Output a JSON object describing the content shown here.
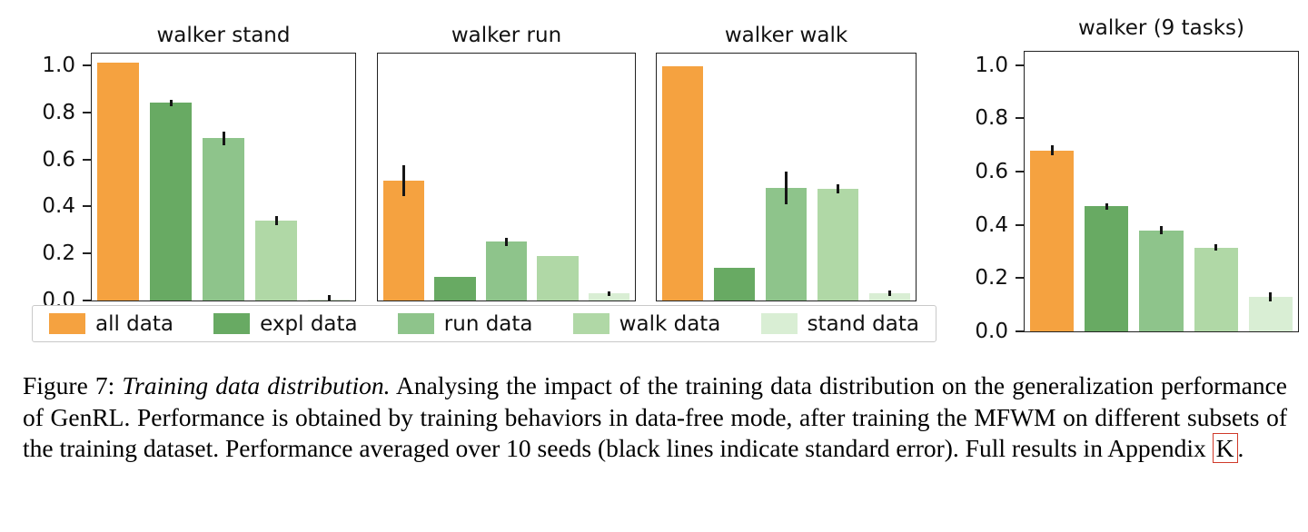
{
  "legend": {
    "items": [
      {
        "label": "all data",
        "color": "#f5a240"
      },
      {
        "label": "expl data",
        "color": "#68aa63"
      },
      {
        "label": "run data",
        "color": "#8ec48b"
      },
      {
        "label": "walk data",
        "color": "#b0d8a6"
      },
      {
        "label": "stand data",
        "color": "#d9eed4"
      }
    ]
  },
  "chart_data": [
    {
      "type": "bar",
      "title": "walker stand",
      "categories": [
        "all data",
        "expl data",
        "run data",
        "walk data",
        "stand data"
      ],
      "values": [
        1.01,
        0.84,
        0.69,
        0.34,
        0.005
      ],
      "errors": [
        0.0,
        0.012,
        0.03,
        0.018,
        0.012
      ],
      "ylim": [
        0,
        1.05
      ],
      "yticks": [
        0.0,
        0.2,
        0.4,
        0.6,
        0.8,
        1.0
      ],
      "show_ytick_labels": true,
      "xlabel": "",
      "ylabel": ""
    },
    {
      "type": "bar",
      "title": "walker run",
      "categories": [
        "all data",
        "expl data",
        "run data",
        "walk data",
        "stand data"
      ],
      "values": [
        0.51,
        0.1,
        0.25,
        0.19,
        0.03
      ],
      "errors": [
        0.065,
        0.0,
        0.018,
        0.0,
        0.01
      ],
      "ylim": [
        0,
        1.05
      ],
      "yticks": [
        0.0,
        0.2,
        0.4,
        0.6,
        0.8,
        1.0
      ],
      "show_ytick_labels": false,
      "xlabel": "",
      "ylabel": ""
    },
    {
      "type": "bar",
      "title": "walker walk",
      "categories": [
        "all data",
        "expl data",
        "run data",
        "walk data",
        "stand data"
      ],
      "values": [
        0.995,
        0.14,
        0.48,
        0.475,
        0.03
      ],
      "errors": [
        0.0,
        0.0,
        0.07,
        0.02,
        0.012
      ],
      "ylim": [
        0,
        1.05
      ],
      "yticks": [
        0.0,
        0.2,
        0.4,
        0.6,
        0.8,
        1.0
      ],
      "show_ytick_labels": false,
      "xlabel": "",
      "ylabel": ""
    },
    {
      "type": "bar",
      "title": "walker (9 tasks)",
      "categories": [
        "all data",
        "expl data",
        "run data",
        "walk data",
        "stand data"
      ],
      "values": [
        0.68,
        0.47,
        0.38,
        0.315,
        0.13
      ],
      "errors": [
        0.018,
        0.012,
        0.016,
        0.012,
        0.018
      ],
      "ylim": [
        0,
        1.05
      ],
      "yticks": [
        0.0,
        0.2,
        0.4,
        0.6,
        0.8,
        1.0
      ],
      "show_ytick_labels": true,
      "xlabel": "",
      "ylabel": ""
    }
  ],
  "caption": {
    "label": "Figure 7:",
    "title_italic": "Training data distribution.",
    "text": "Analysing the impact of the training data distribution on the generalization performance of GenRL. Performance is obtained by training behaviors in data-free mode, after training the MFWM on different subsets of the training dataset. Performance averaged over 10 seeds (black lines indicate standard error). Full results in Appendix",
    "appendix_ref": "K",
    "period": "."
  }
}
